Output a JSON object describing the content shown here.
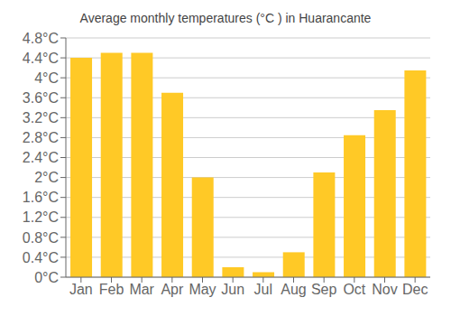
{
  "chart_data": {
    "type": "bar",
    "title": "Average monthly temperatures (°C ) in Huarancante",
    "categories": [
      "Jan",
      "Feb",
      "Mar",
      "Apr",
      "May",
      "Jun",
      "Jul",
      "Aug",
      "Sep",
      "Oct",
      "Nov",
      "Dec"
    ],
    "values": [
      4.4,
      4.5,
      4.5,
      3.7,
      2.0,
      0.2,
      0.1,
      0.5,
      2.1,
      2.85,
      3.35,
      4.15
    ],
    "color": "#FFC926",
    "ylim": [
      0,
      4.8
    ],
    "yticks": [
      {
        "value": 0,
        "label": "0°C"
      },
      {
        "value": 0.4,
        "label": "0.4°C"
      },
      {
        "value": 0.8,
        "label": "0.8°C"
      },
      {
        "value": 1.2,
        "label": "1.2°C"
      },
      {
        "value": 1.6,
        "label": "1.6°C"
      },
      {
        "value": 2,
        "label": "2°C"
      },
      {
        "value": 2.4,
        "label": "2.4°C"
      },
      {
        "value": 2.8,
        "label": "2.8°C"
      },
      {
        "value": 3.2,
        "label": "3.2°C"
      },
      {
        "value": 3.6,
        "label": "3.6°C"
      },
      {
        "value": 4,
        "label": "4°C"
      },
      {
        "value": 4.4,
        "label": "4.4°C"
      },
      {
        "value": 4.8,
        "label": "4.8°C"
      }
    ],
    "grid": true
  }
}
